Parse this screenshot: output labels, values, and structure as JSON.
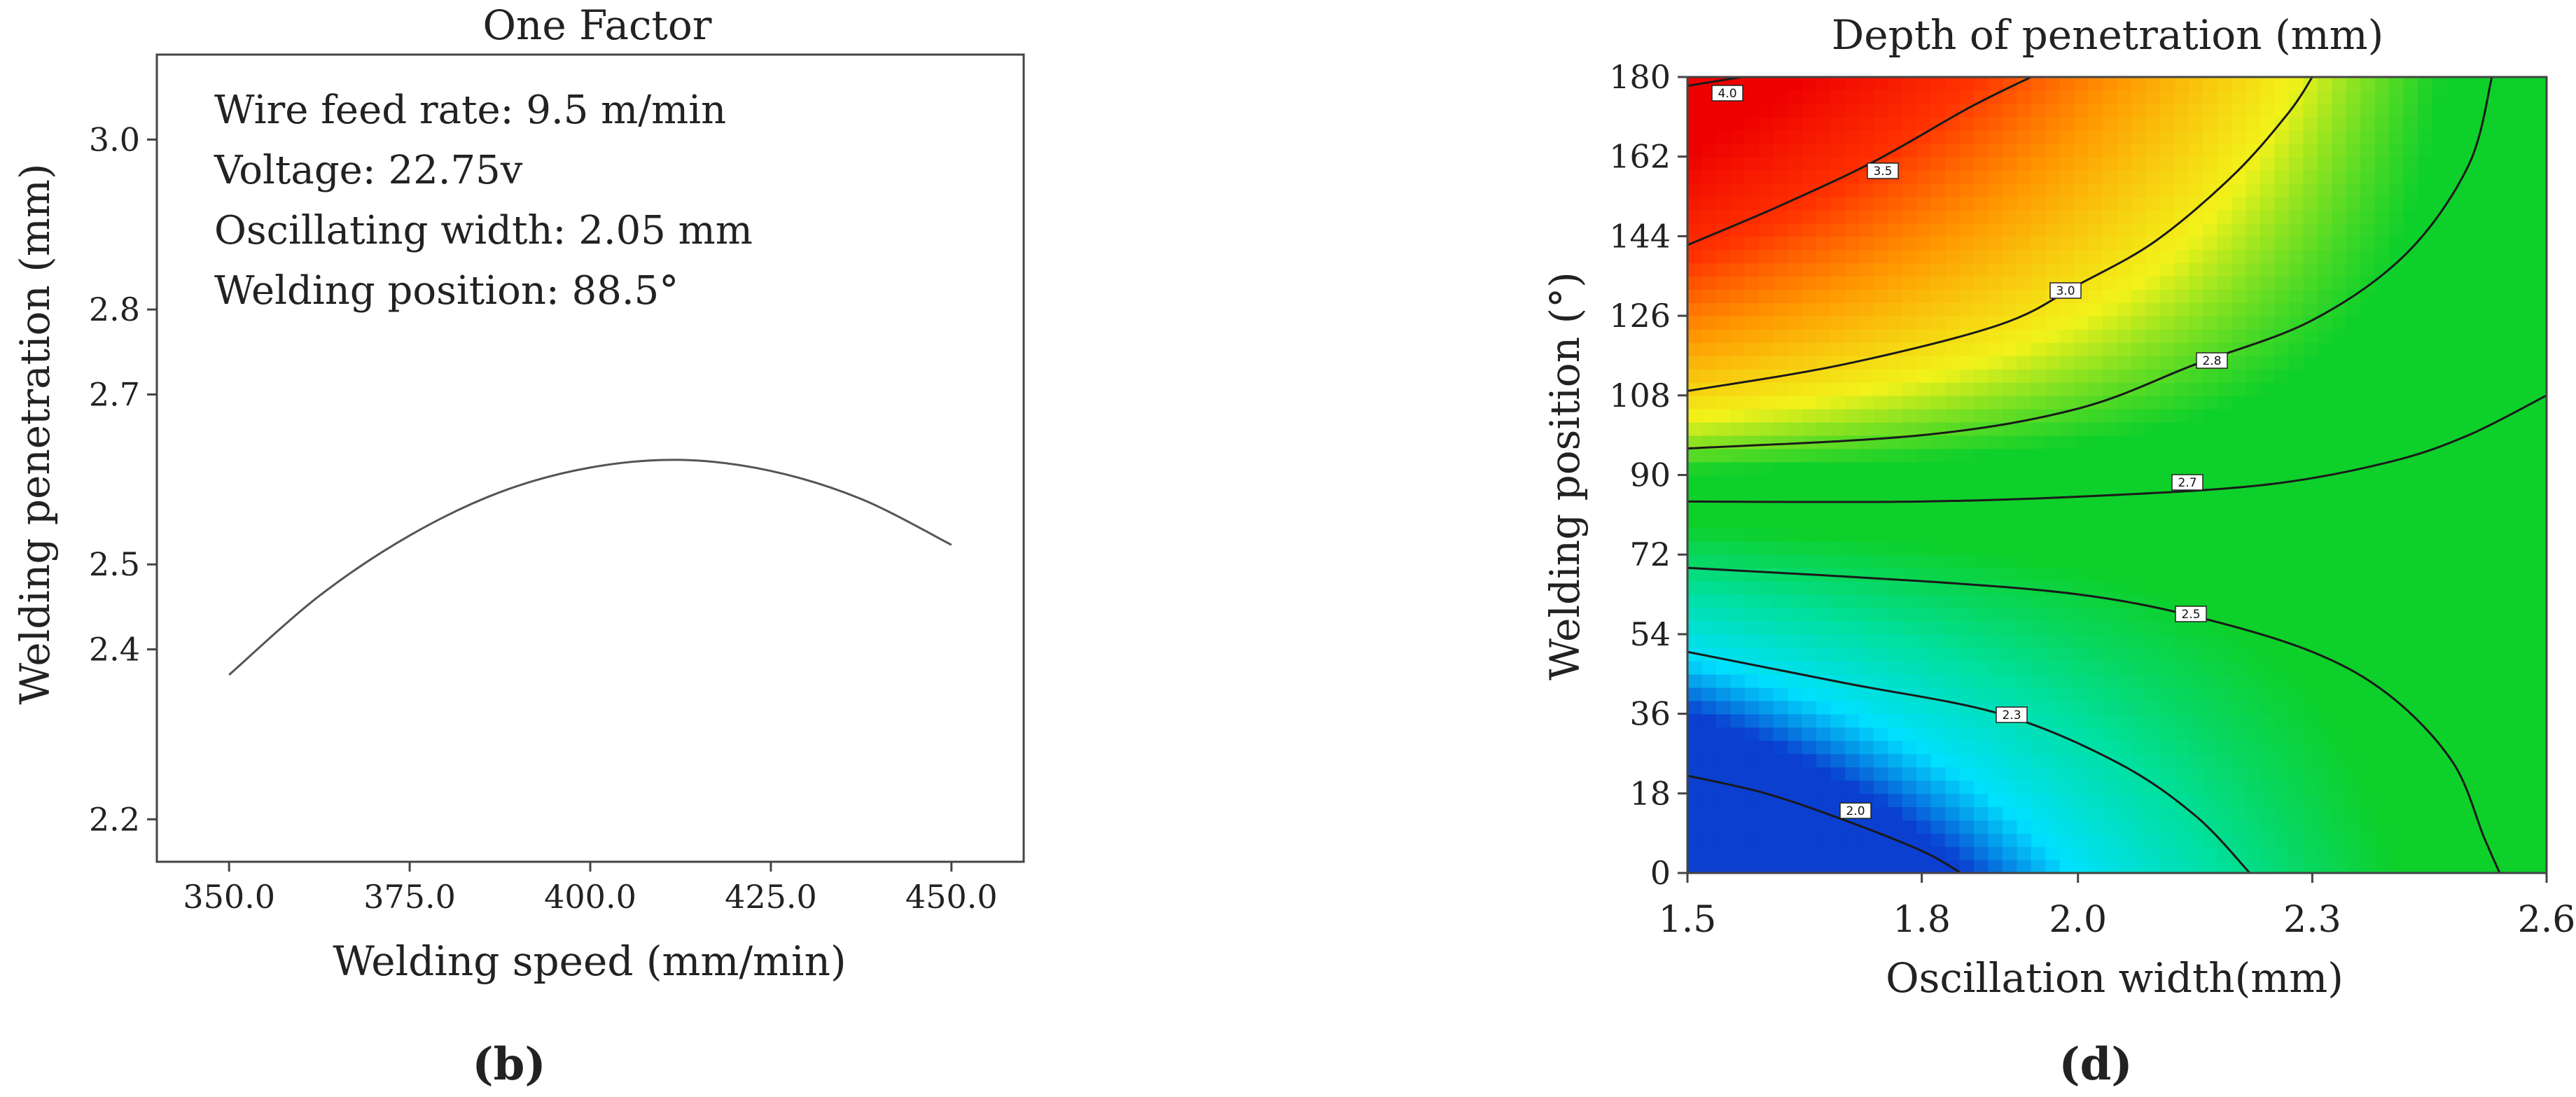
{
  "chart_data": [
    {
      "panel": "b",
      "type": "line",
      "title": "One Factor",
      "xlabel": "Welding speed (mm/min)",
      "ylabel": "Welding penetration (mm)",
      "xlim": [
        340,
        460
      ],
      "ylim": [
        2.15,
        3.1
      ],
      "xticks": [
        350,
        375,
        400,
        425,
        450
      ],
      "xtick_labels": [
        "350.0",
        "375.0",
        "400.0",
        "425.0",
        "450.0"
      ],
      "yticks": [
        2.2,
        2.4,
        2.5,
        2.7,
        2.8,
        3.0
      ],
      "ytick_labels": [
        "2.2",
        "2.4",
        "2.5",
        "2.7",
        "2.8",
        "3.0"
      ],
      "annotations": [
        "Wire feed rate: 9.5 m/min",
        "Voltage: 22.75v",
        "Oscillating width: 2.05 mm",
        "Welding position: 88.5°"
      ],
      "series": [
        {
          "name": "Welding penetration",
          "x": [
            350,
            362.5,
            375,
            387.5,
            400,
            412.5,
            425,
            437.5,
            450
          ],
          "y": [
            2.37,
            2.463,
            2.534,
            2.585,
            2.614,
            2.623,
            2.61,
            2.577,
            2.523
          ]
        }
      ]
    },
    {
      "panel": "d",
      "type": "heatmap",
      "title": "Depth of penetration (mm)",
      "xlabel": "Oscillation width(mm)",
      "ylabel": "Welding position (°)",
      "xlim": [
        1.5,
        2.6
      ],
      "ylim": [
        0,
        180
      ],
      "xticks": [
        1.5,
        1.8,
        2.0,
        2.3,
        2.6
      ],
      "xtick_labels": [
        "1.5",
        "1.8",
        "2.0",
        "2.3",
        "2.6"
      ],
      "yticks": [
        0,
        18,
        36,
        54,
        72,
        90,
        108,
        126,
        144,
        162,
        180
      ],
      "ytick_labels": [
        "0",
        "18",
        "36",
        "54",
        "72",
        "90",
        "108",
        "126",
        "144",
        "162",
        "180"
      ],
      "contours": [
        {
          "level": "4.0",
          "points": [
            [
              1.5,
              178
            ],
            [
              1.57,
              180
            ]
          ]
        },
        {
          "level": "3.5",
          "points": [
            [
              1.5,
              142
            ],
            [
              1.62,
              151
            ],
            [
              1.74,
              161
            ],
            [
              1.86,
              173
            ],
            [
              1.94,
              180
            ]
          ]
        },
        {
          "level": "3.0",
          "points": [
            [
              1.5,
              109
            ],
            [
              1.7,
              115
            ],
            [
              1.9,
              124
            ],
            [
              2.0,
              133
            ],
            [
              2.1,
              143
            ],
            [
              2.2,
              158
            ],
            [
              2.27,
              172
            ],
            [
              2.3,
              180
            ]
          ]
        },
        {
          "level": "2.8",
          "points": [
            [
              1.5,
              96
            ],
            [
              1.8,
              99
            ],
            [
              2.0,
              105
            ],
            [
              2.15,
              115
            ],
            [
              2.3,
              125
            ],
            [
              2.42,
              140
            ],
            [
              2.5,
              160
            ],
            [
              2.53,
              180
            ]
          ]
        },
        {
          "level": "2.7",
          "points": [
            [
              1.5,
              84
            ],
            [
              1.8,
              84
            ],
            [
              2.05,
              85.5
            ],
            [
              2.25,
              88
            ],
            [
              2.4,
              93
            ],
            [
              2.5,
              99
            ],
            [
              2.6,
              108
            ]
          ]
        },
        {
          "level": "2.5",
          "points": [
            [
              1.5,
              69
            ],
            [
              1.8,
              66
            ],
            [
              2.0,
              63
            ],
            [
              2.15,
              58
            ],
            [
              2.3,
              50
            ],
            [
              2.4,
              40
            ],
            [
              2.48,
              25
            ],
            [
              2.52,
              8
            ],
            [
              2.54,
              0
            ]
          ]
        },
        {
          "level": "2.3",
          "points": [
            [
              1.5,
              50
            ],
            [
              1.7,
              43
            ],
            [
              1.9,
              36
            ],
            [
              2.05,
              25
            ],
            [
              2.15,
              13
            ],
            [
              2.22,
              0
            ]
          ]
        },
        {
          "level": "2.0",
          "points": [
            [
              1.5,
              22
            ],
            [
              1.6,
              18
            ],
            [
              1.7,
              12
            ],
            [
              1.8,
              5
            ],
            [
              1.85,
              0
            ]
          ]
        }
      ],
      "color_stops": [
        {
          "value": 1.9,
          "color": "#0a3fd0"
        },
        {
          "value": 2.1,
          "color": "#00e0ff"
        },
        {
          "value": 2.35,
          "color": "#00e0a0"
        },
        {
          "value": 2.6,
          "color": "#0ed02a"
        },
        {
          "value": 2.8,
          "color": "#0ed02a"
        },
        {
          "value": 3.0,
          "color": "#f2f21a"
        },
        {
          "value": 3.3,
          "color": "#ff9900"
        },
        {
          "value": 3.6,
          "color": "#ff3300"
        },
        {
          "value": 4.0,
          "color": "#ee0000"
        }
      ]
    }
  ],
  "panel_labels": {
    "b": "(b)",
    "d": "(d)"
  }
}
